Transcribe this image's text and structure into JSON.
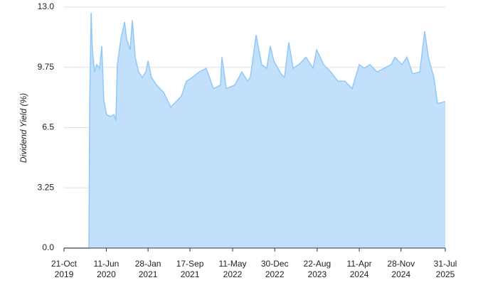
{
  "chart_data": {
    "type": "area",
    "y_label": "Dividend Yield (%)",
    "x": [
      "2019-10-21",
      "2020-03-07",
      "2020-03-11",
      "2020-03-19",
      "2020-03-26",
      "2020-04-07",
      "2020-04-19",
      "2020-05-05",
      "2020-05-17",
      "2020-05-28",
      "2020-06-13",
      "2020-07-03",
      "2020-07-23",
      "2020-08-03",
      "2020-08-11",
      "2020-08-31",
      "2020-09-20",
      "2020-10-01",
      "2020-10-21",
      "2020-11-02",
      "2020-11-18",
      "2020-12-07",
      "2020-12-27",
      "2021-01-16",
      "2021-01-28",
      "2021-02-16",
      "2021-03-16",
      "2021-04-24",
      "2021-06-03",
      "2021-06-22",
      "2021-08-01",
      "2021-08-28",
      "2021-09-29",
      "2021-11-07",
      "2021-12-16",
      "2022-01-25",
      "2022-03-05",
      "2022-03-13",
      "2022-04-06",
      "2022-05-23",
      "2022-07-01",
      "2022-08-02",
      "2022-08-17",
      "2022-09-18",
      "2022-10-19",
      "2022-11-16",
      "2022-12-06",
      "2022-12-25",
      "2023-02-03",
      "2023-02-22",
      "2023-03-18",
      "2023-04-11",
      "2023-05-12",
      "2023-06-21",
      "2023-07-30",
      "2023-08-19",
      "2023-09-27",
      "2023-11-05",
      "2023-12-15",
      "2024-01-23",
      "2024-03-02",
      "2024-04-11",
      "2024-05-08",
      "2024-06-09",
      "2024-07-18",
      "2024-08-27",
      "2024-10-05",
      "2024-10-25",
      "2024-12-03",
      "2024-12-31",
      "2025-01-31",
      "2025-03-12",
      "2025-04-08",
      "2025-04-28",
      "2025-05-29",
      "2025-06-18",
      "2025-07-31"
    ],
    "series": [
      {
        "name": "Dividend Yield",
        "color": "#90c8f8",
        "fill": "#c2e0fc",
        "values": [
          0,
          0,
          7.8,
          12.7,
          10.7,
          9.5,
          9.9,
          9.7,
          10.9,
          8.0,
          7.2,
          7.1,
          7.2,
          6.9,
          9.9,
          11.3,
          12.2,
          11.3,
          10.7,
          12.3,
          10.3,
          9.5,
          9.2,
          9.5,
          10.1,
          9.2,
          8.8,
          8.4,
          7.6,
          7.8,
          8.2,
          9.0,
          9.2,
          9.5,
          9.7,
          8.6,
          8.8,
          10.3,
          8.6,
          8.8,
          9.5,
          9.0,
          9.2,
          11.5,
          9.9,
          9.7,
          10.9,
          10.1,
          9.4,
          9.2,
          11.1,
          9.7,
          9.9,
          10.3,
          9.7,
          10.7,
          9.9,
          9.5,
          9.0,
          9.0,
          8.6,
          9.9,
          9.7,
          9.9,
          9.5,
          9.7,
          9.9,
          10.3,
          9.9,
          10.3,
          9.4,
          9.5,
          11.7,
          10.3,
          9.2,
          7.8,
          7.9
        ]
      }
    ],
    "xlim": [
      "2019-10-21",
      "2025-07-31"
    ],
    "xticks": [
      {
        "value": "2019-10-21",
        "label": "21-Oct 2019"
      },
      {
        "value": "2020-06-11",
        "label": "11-Jun 2020"
      },
      {
        "value": "2021-01-28",
        "label": "28-Jan 2021"
      },
      {
        "value": "2021-09-17",
        "label": "17-Sep 2021"
      },
      {
        "value": "2022-05-11",
        "label": "11-May 2022"
      },
      {
        "value": "2022-12-30",
        "label": "30-Dec 2022"
      },
      {
        "value": "2023-08-22",
        "label": "22-Aug 2023"
      },
      {
        "value": "2024-04-11",
        "label": "11-Apr 2024"
      },
      {
        "value": "2024-11-28",
        "label": "28-Nov 2024"
      },
      {
        "value": "2025-07-31",
        "label": "31-Jul 2025"
      }
    ],
    "ylim": [
      0,
      13
    ],
    "yticks": [
      {
        "value": 0,
        "label": "0.0"
      },
      3.25,
      6.5,
      9.75,
      {
        "value": 13,
        "label": "13.0"
      }
    ],
    "grid": true
  }
}
